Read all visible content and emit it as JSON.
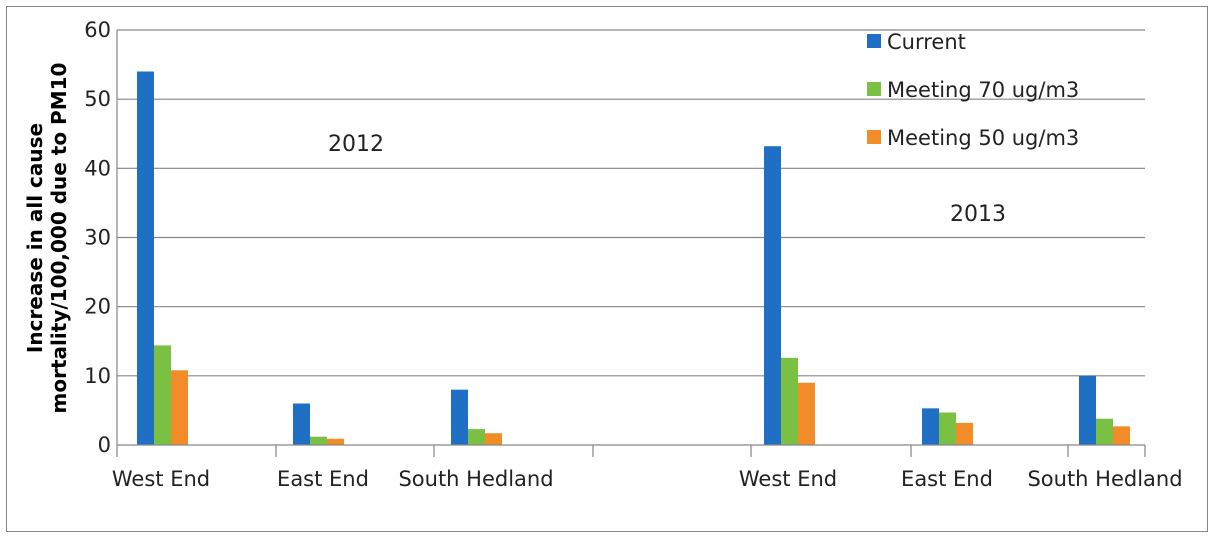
{
  "chart_data": {
    "type": "bar",
    "categories": [
      "West End",
      "East End",
      "South Hedland",
      "",
      "West End",
      "East End",
      "South Hedland"
    ],
    "series": [
      {
        "name": "Current",
        "color": "#1f6fc5",
        "values": [
          54,
          6,
          8,
          null,
          43.2,
          5.3,
          10
        ]
      },
      {
        "name": "Meeting 70 ug/m3",
        "color": "#7ac143",
        "values": [
          14.4,
          1.2,
          2.3,
          null,
          12.6,
          4.7,
          3.8
        ]
      },
      {
        "name": "Meeting 50 ug/m3",
        "color": "#f28c28",
        "values": [
          10.8,
          0.9,
          1.7,
          null,
          9,
          3.2,
          2.7
        ]
      }
    ],
    "ylim": [
      0,
      60
    ],
    "yticks": [
      "0",
      "10",
      "20",
      "30",
      "40",
      "50",
      "60"
    ],
    "ylabel_lines": [
      "Increase in all cause",
      "mortality/100,000 due to PM10"
    ],
    "annotations": [
      "2012",
      "2013"
    ],
    "grid": true,
    "legend_position": "top-right"
  }
}
